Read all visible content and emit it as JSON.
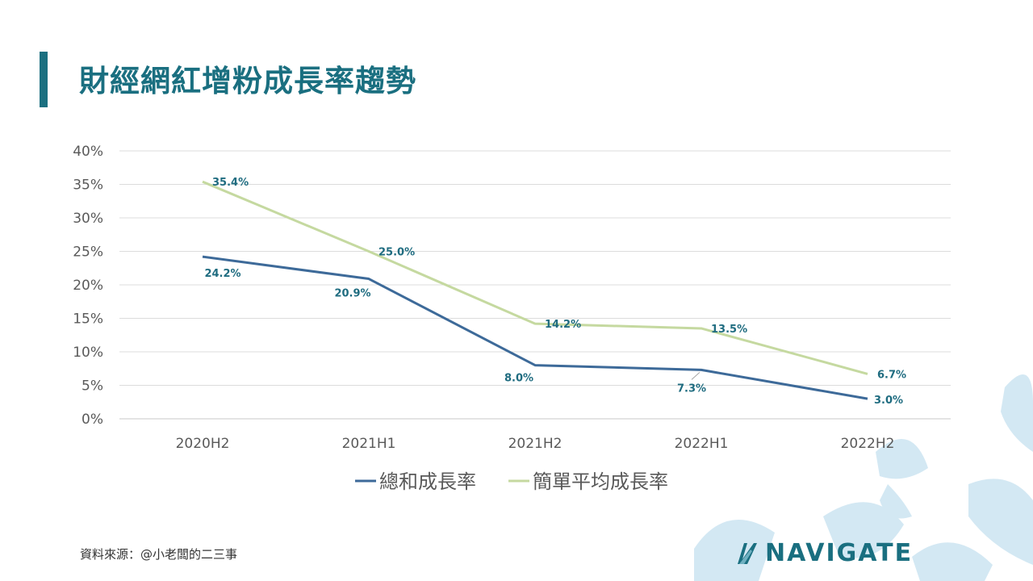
{
  "header": {
    "title": "財經網紅增粉成長率趨勢"
  },
  "footer": {
    "source": "資料來源：@小老闆的二三事",
    "logo_text": "NAVIGATE"
  },
  "colors": {
    "accent": "#1a6f80",
    "series1": "#3d6a99",
    "series2": "#c5d9a0",
    "label": "#1f6c80"
  },
  "chart_data": {
    "type": "line",
    "title": "財經網紅增粉成長率趨勢",
    "categories": [
      "2020H2",
      "2021H1",
      "2021H2",
      "2022H1",
      "2022H2"
    ],
    "y_ticks": [
      "0%",
      "5%",
      "10%",
      "15%",
      "20%",
      "25%",
      "30%",
      "35%",
      "40%"
    ],
    "ylim": [
      0,
      40
    ],
    "grid": true,
    "legend_position": "bottom",
    "series": [
      {
        "name": "總和成長率",
        "values": [
          24.2,
          20.9,
          8.0,
          7.3,
          3.0
        ],
        "labels": [
          "24.2%",
          "20.9%",
          "8.0%",
          "7.3%",
          "3.0%"
        ]
      },
      {
        "name": "簡單平均成長率",
        "values": [
          35.4,
          25.0,
          14.2,
          13.5,
          6.7
        ],
        "labels": [
          "35.4%",
          "25.0%",
          "14.2%",
          "13.5%",
          "6.7%"
        ]
      }
    ]
  }
}
